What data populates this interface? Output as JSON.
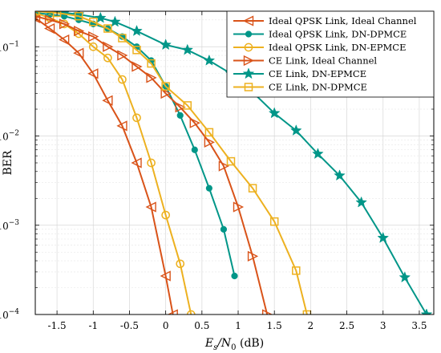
{
  "chart_data": {
    "type": "line",
    "xlabel": {
      "main": "E",
      "sub1": "s",
      "slash": "/N",
      "sub2": "0",
      "unit": " (dB)"
    },
    "ylabel": "BER",
    "xlim": [
      -1.8,
      3.7
    ],
    "ylim": [
      0.0001,
      0.25
    ],
    "y_scale": "log",
    "grid": true,
    "legend_position": "top-right",
    "x_ticks": [
      -1.5,
      -1,
      -0.5,
      0,
      0.5,
      1,
      1.5,
      2,
      2.5,
      3,
      3.5
    ],
    "x_tick_labels": [
      "-1.5",
      "-1",
      "-0.5",
      "0",
      "0.5",
      "1",
      "1.5",
      "2",
      "2.5",
      "3",
      "3.5"
    ],
    "y_ticks": [
      {
        "value": 0.0001,
        "base": "10",
        "exp": "−4"
      },
      {
        "value": 0.001,
        "base": "10",
        "exp": "−3"
      },
      {
        "value": 0.01,
        "base": "10",
        "exp": "−2"
      },
      {
        "value": 0.1,
        "base": "10",
        "exp": "−1"
      }
    ],
    "series": [
      {
        "name": "Ideal QPSK Link, Ideal Channel",
        "color": "#D95319",
        "marker": "triangle-left",
        "x": [
          -1.8,
          -1.6,
          -1.4,
          -1.2,
          -1.0,
          -0.8,
          -0.6,
          -0.4,
          -0.2,
          0.0,
          0.1
        ],
        "y": [
          0.21,
          0.16,
          0.12,
          0.085,
          0.05,
          0.025,
          0.013,
          0.005,
          0.0016,
          0.00027,
          0.0001
        ]
      },
      {
        "name": "Ideal QPSK Link, DN-DPMCE",
        "color": "#009688",
        "marker": "filled-circle",
        "x": [
          -1.8,
          -1.6,
          -1.4,
          -1.2,
          -1.0,
          -0.8,
          -0.6,
          -0.4,
          -0.2,
          0.0,
          0.2,
          0.4,
          0.6,
          0.8,
          0.95
        ],
        "y": [
          0.24,
          0.23,
          0.22,
          0.2,
          0.18,
          0.16,
          0.13,
          0.1,
          0.07,
          0.036,
          0.017,
          0.007,
          0.0026,
          0.0009,
          0.00027
        ]
      },
      {
        "name": "Ideal QPSK Link, DN-EPMCE",
        "color": "#EDB120",
        "marker": "circle",
        "x": [
          -1.8,
          -1.6,
          -1.4,
          -1.2,
          -1.0,
          -0.8,
          -0.6,
          -0.4,
          -0.2,
          0.0,
          0.2,
          0.35
        ],
        "y": [
          0.24,
          0.21,
          0.18,
          0.14,
          0.1,
          0.075,
          0.043,
          0.016,
          0.005,
          0.0013,
          0.00037,
          0.0001
        ]
      },
      {
        "name": "CE Link, Ideal Channel",
        "color": "#D95319",
        "marker": "triangle-right",
        "x": [
          -1.8,
          -1.6,
          -1.4,
          -1.2,
          -1.0,
          -0.8,
          -0.6,
          -0.4,
          -0.2,
          0.0,
          0.2,
          0.4,
          0.6,
          0.8,
          1.0,
          1.2,
          1.4
        ],
        "y": [
          0.22,
          0.2,
          0.18,
          0.15,
          0.13,
          0.1,
          0.08,
          0.06,
          0.045,
          0.03,
          0.021,
          0.014,
          0.0085,
          0.0046,
          0.0016,
          0.00045,
          0.0001
        ]
      },
      {
        "name": "CE Link, DN-EPMCE",
        "color": "#009688",
        "marker": "star",
        "x": [
          -1.8,
          -1.6,
          -1.4,
          -1.2,
          -0.9,
          -0.7,
          -0.4,
          0.0,
          0.3,
          0.6,
          0.9,
          1.2,
          1.5,
          1.8,
          2.1,
          2.4,
          2.7,
          3.0,
          3.3,
          3.6
        ],
        "y": [
          0.26,
          0.25,
          0.24,
          0.23,
          0.21,
          0.19,
          0.15,
          0.105,
          0.092,
          0.07,
          0.05,
          0.031,
          0.018,
          0.0115,
          0.0063,
          0.0036,
          0.0018,
          0.00072,
          0.00026,
          0.0001
        ]
      },
      {
        "name": "CE Link, DN-DPMCE",
        "color": "#EDB120",
        "marker": "square",
        "x": [
          -1.8,
          -1.5,
          -1.2,
          -1.0,
          -0.8,
          -0.6,
          -0.4,
          -0.2,
          0.0,
          0.3,
          0.6,
          0.9,
          1.2,
          1.5,
          1.8,
          1.95
        ],
        "y": [
          0.25,
          0.24,
          0.22,
          0.19,
          0.16,
          0.125,
          0.092,
          0.065,
          0.036,
          0.022,
          0.011,
          0.0052,
          0.0026,
          0.0011,
          0.00031,
          0.0001
        ]
      }
    ]
  }
}
